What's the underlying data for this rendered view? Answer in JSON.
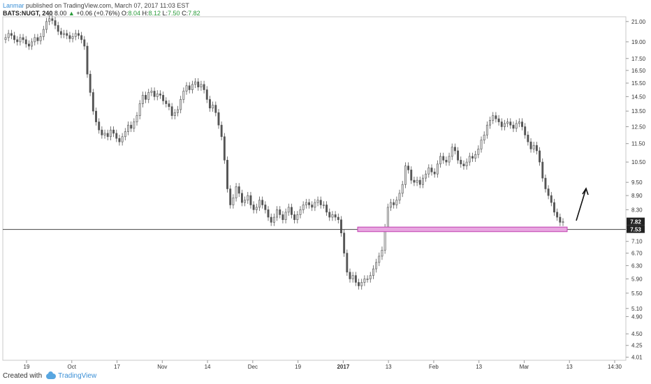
{
  "header": {
    "author": "Lanmar",
    "published_text": "published on TradingView.com, March 07, 2017 11:03 EST"
  },
  "ohlc": {
    "symbol": "BATS:NUGT, 240",
    "last": "8.00",
    "change_arrow": "▲",
    "change": "+0.06 (+0.76%)",
    "o_label": "O:",
    "o_value": "8.04",
    "h_label": "H:",
    "h_value": "8.12",
    "l_label": "L:",
    "l_value": "7.50",
    "c_label": "C:",
    "c_value": "7.82"
  },
  "footer": {
    "created_with": "Created with",
    "brand": "TradingView"
  },
  "colors": {
    "candle": "#555555",
    "support_fill": "#e8a6e0",
    "support_stroke": "#c040b0",
    "level_line": "#444444",
    "price_tag_bg": "#222222",
    "price_tag_text": "#ffffff"
  },
  "chart_data": {
    "type": "candlestick",
    "symbol": "BATS:NUGT",
    "interval": "240",
    "y_axis_ticks": [
      "21.00",
      "19.00",
      "17.50",
      "16.50",
      "15.50",
      "14.50",
      "13.50",
      "12.50",
      "11.50",
      "10.50",
      "9.50",
      "8.90",
      "8.30",
      "7.10",
      "6.70",
      "6.30",
      "5.90",
      "5.50",
      "5.10",
      "4.90",
      "4.50",
      "4.25",
      "4.01"
    ],
    "x_axis_ticks": [
      "19",
      "Oct",
      "17",
      "Nov",
      "14",
      "Dec",
      "19",
      "2017",
      "13",
      "Feb",
      "13",
      "Mar",
      "13",
      "14:30"
    ],
    "price_tags": [
      {
        "label": "7.82",
        "value": 7.82
      },
      {
        "label": "7.53",
        "value": 7.53
      }
    ],
    "horizontal_line": 7.53,
    "support_zone": {
      "from": 7.45,
      "to": 7.62
    },
    "annotation": "upward arrow",
    "ylim": [
      3.95,
      21.5
    ],
    "log_scale": true,
    "closes": [
      19.4,
      19.8,
      19.6,
      19.2,
      19.0,
      19.4,
      19.2,
      18.8,
      18.6,
      19.0,
      19.4,
      19.1,
      19.5,
      20.2,
      21.0,
      21.3,
      21.1,
      20.6,
      20.0,
      19.7,
      19.8,
      19.6,
      19.3,
      19.5,
      19.8,
      19.6,
      19.2,
      18.6,
      16.2,
      14.8,
      13.5,
      12.8,
      12.3,
      12.0,
      12.1,
      11.9,
      12.3,
      12.1,
      11.8,
      11.6,
      11.9,
      12.2,
      12.6,
      12.4,
      12.8,
      13.2,
      14.0,
      14.6,
      14.3,
      14.8,
      14.9,
      14.5,
      14.7,
      14.6,
      14.2,
      14.0,
      13.8,
      13.2,
      13.4,
      13.6,
      14.3,
      14.9,
      15.3,
      15.0,
      15.4,
      15.6,
      15.2,
      15.4,
      15.0,
      14.3,
      13.7,
      13.9,
      13.4,
      12.6,
      11.9,
      10.6,
      9.2,
      8.5,
      8.8,
      9.3,
      9.0,
      8.6,
      8.7,
      8.9,
      8.5,
      8.3,
      8.4,
      8.7,
      8.5,
      8.3,
      8.0,
      7.8,
      8.0,
      8.3,
      8.1,
      7.9,
      8.2,
      8.4,
      8.1,
      7.9,
      8.1,
      8.3,
      8.5,
      8.6,
      8.5,
      8.4,
      8.6,
      8.7,
      8.5,
      8.5,
      8.2,
      8.0,
      8.1,
      8.0,
      7.9,
      7.4,
      6.7,
      6.1,
      5.9,
      6.0,
      5.8,
      5.7,
      5.8,
      5.9,
      5.9,
      6.0,
      6.2,
      6.4,
      6.6,
      6.8,
      7.6,
      8.4,
      8.6,
      8.5,
      8.7,
      9.0,
      9.4,
      10.3,
      10.1,
      9.6,
      9.5,
      9.6,
      9.4,
      9.7,
      9.9,
      10.2,
      10.0,
      9.9,
      10.4,
      10.8,
      10.6,
      10.5,
      10.8,
      11.3,
      11.1,
      10.6,
      10.4,
      10.3,
      10.5,
      10.8,
      10.7,
      10.9,
      11.2,
      11.7,
      12.0,
      12.6,
      12.9,
      13.2,
      13.0,
      12.8,
      12.5,
      12.7,
      12.8,
      12.6,
      12.4,
      12.7,
      12.8,
      12.5,
      12.0,
      11.6,
      11.2,
      11.4,
      11.1,
      10.5,
      9.7,
      9.2,
      8.9,
      8.6,
      8.2,
      8.0,
      7.8,
      7.82
    ]
  }
}
